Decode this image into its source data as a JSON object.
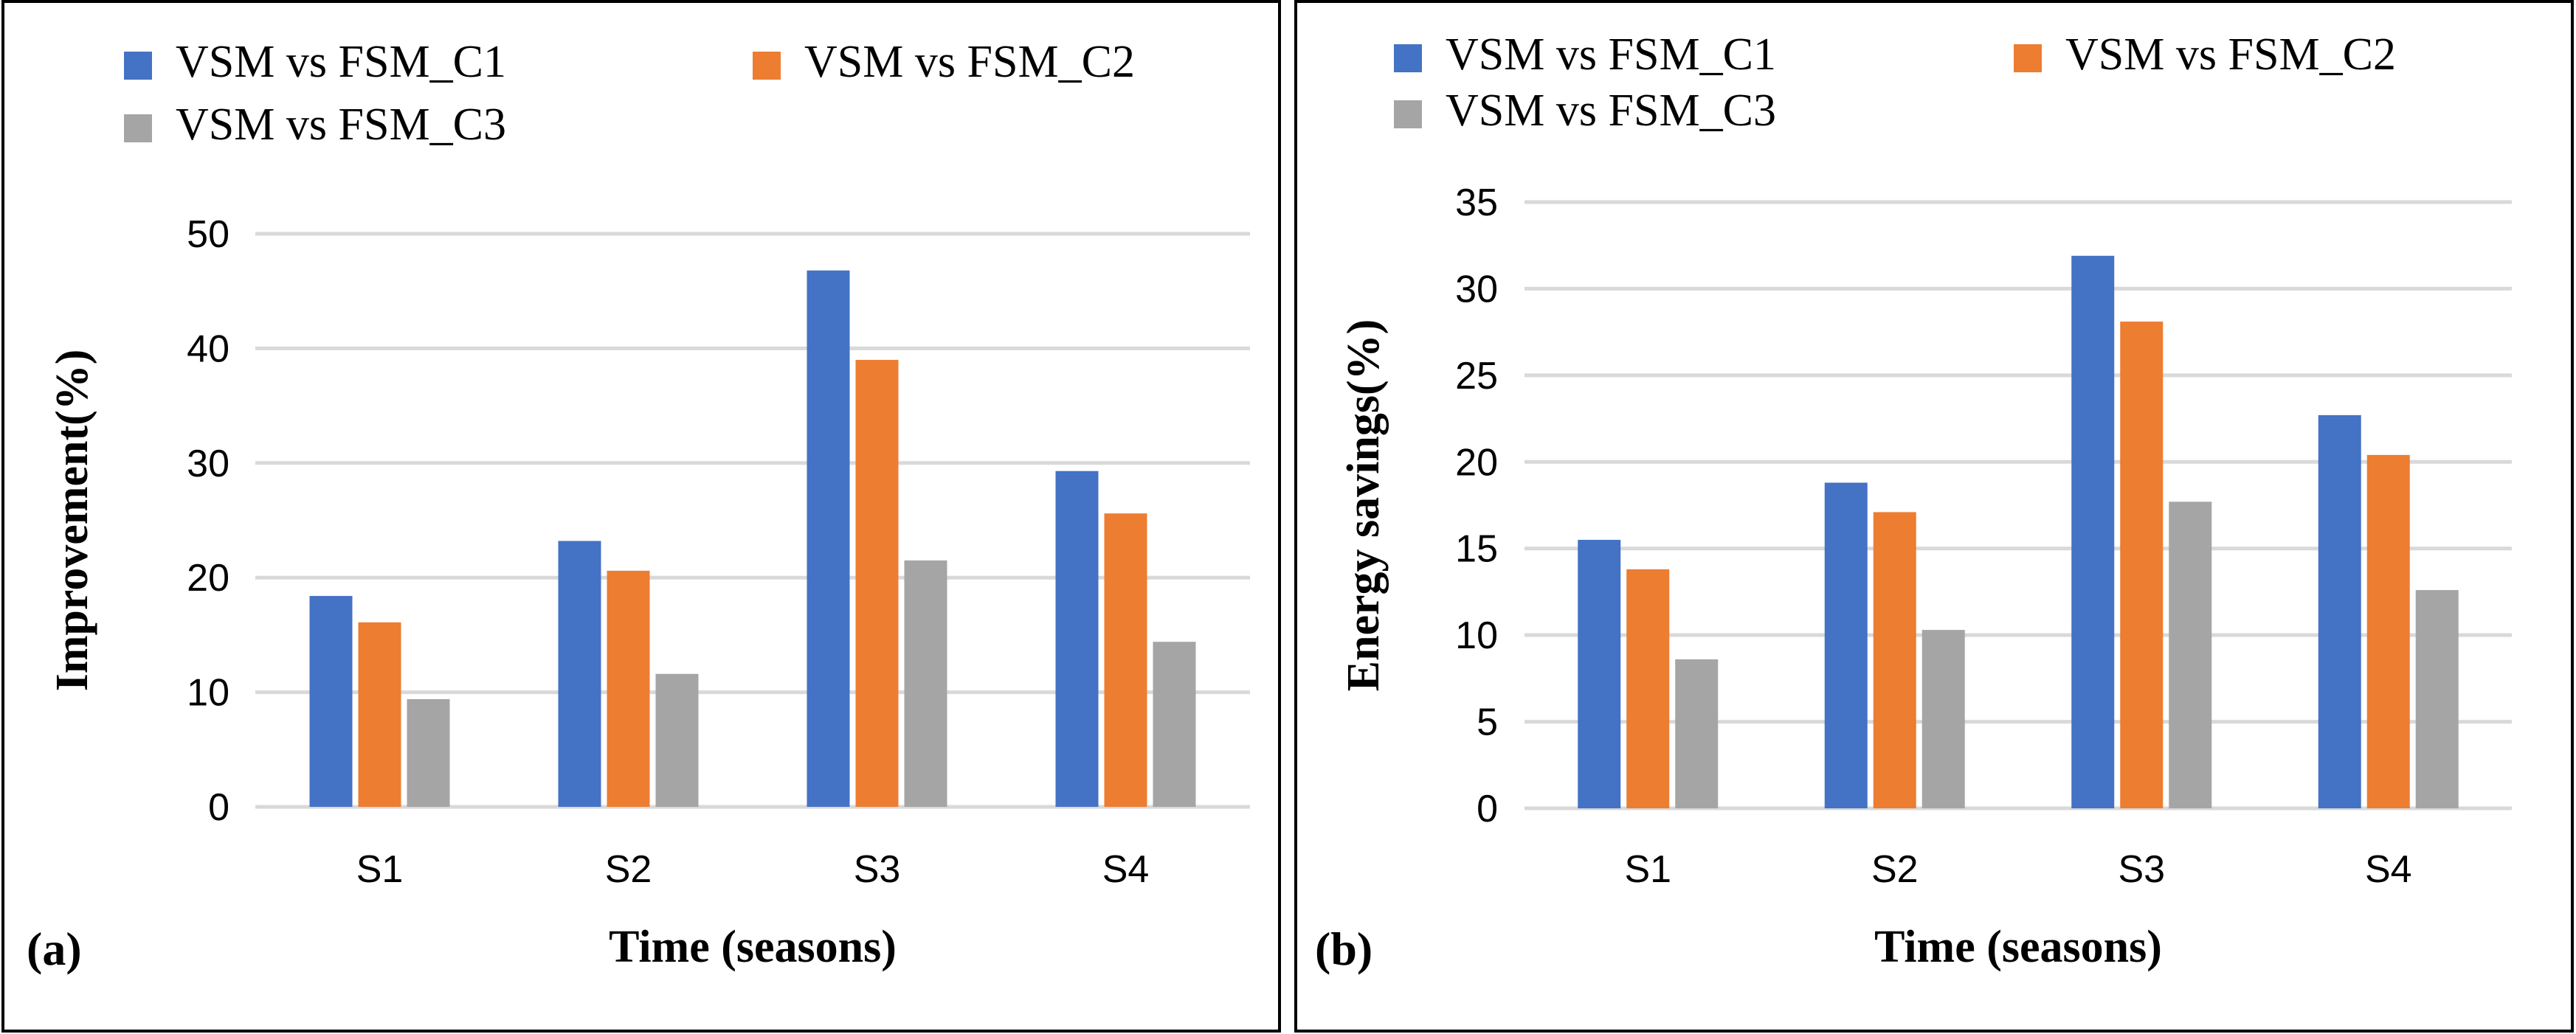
{
  "chart_data": [
    {
      "type": "bar",
      "panel_label": "(a)",
      "categories": [
        "S1",
        "S2",
        "S3",
        "S4"
      ],
      "series": [
        {
          "name": "VSM vs FSM_C1",
          "color": "#4472c4",
          "values": [
            18.4,
            23.2,
            46.8,
            29.3
          ]
        },
        {
          "name": "VSM vs FSM_C2",
          "color": "#ed7d31",
          "values": [
            16.1,
            20.6,
            39.0,
            25.6
          ]
        },
        {
          "name": "VSM vs FSM_C3",
          "color": "#a5a5a5",
          "values": [
            9.4,
            11.6,
            21.5,
            14.4
          ]
        }
      ],
      "xlabel": "Time (seasons)",
      "ylabel": "Improvement(%)",
      "ylim": [
        0,
        50
      ],
      "yticks": [
        0,
        10,
        20,
        30,
        40,
        50
      ],
      "grid": true,
      "legend": "top"
    },
    {
      "type": "bar",
      "panel_label": "(b)",
      "categories": [
        "S1",
        "S2",
        "S3",
        "S4"
      ],
      "series": [
        {
          "name": "VSM vs FSM_C1",
          "color": "#4472c4",
          "values": [
            15.5,
            18.8,
            31.9,
            22.7
          ]
        },
        {
          "name": "VSM vs FSM_C2",
          "color": "#ed7d31",
          "values": [
            13.8,
            17.1,
            28.1,
            20.4
          ]
        },
        {
          "name": "VSM vs FSM_C3",
          "color": "#a5a5a5",
          "values": [
            8.6,
            10.3,
            17.7,
            12.6
          ]
        }
      ],
      "xlabel": "Time (seasons)",
      "ylabel": "Energy savings(%)",
      "ylim": [
        0,
        35
      ],
      "yticks": [
        0,
        5,
        10,
        15,
        20,
        25,
        30,
        35
      ],
      "grid": true,
      "legend": "top"
    }
  ]
}
